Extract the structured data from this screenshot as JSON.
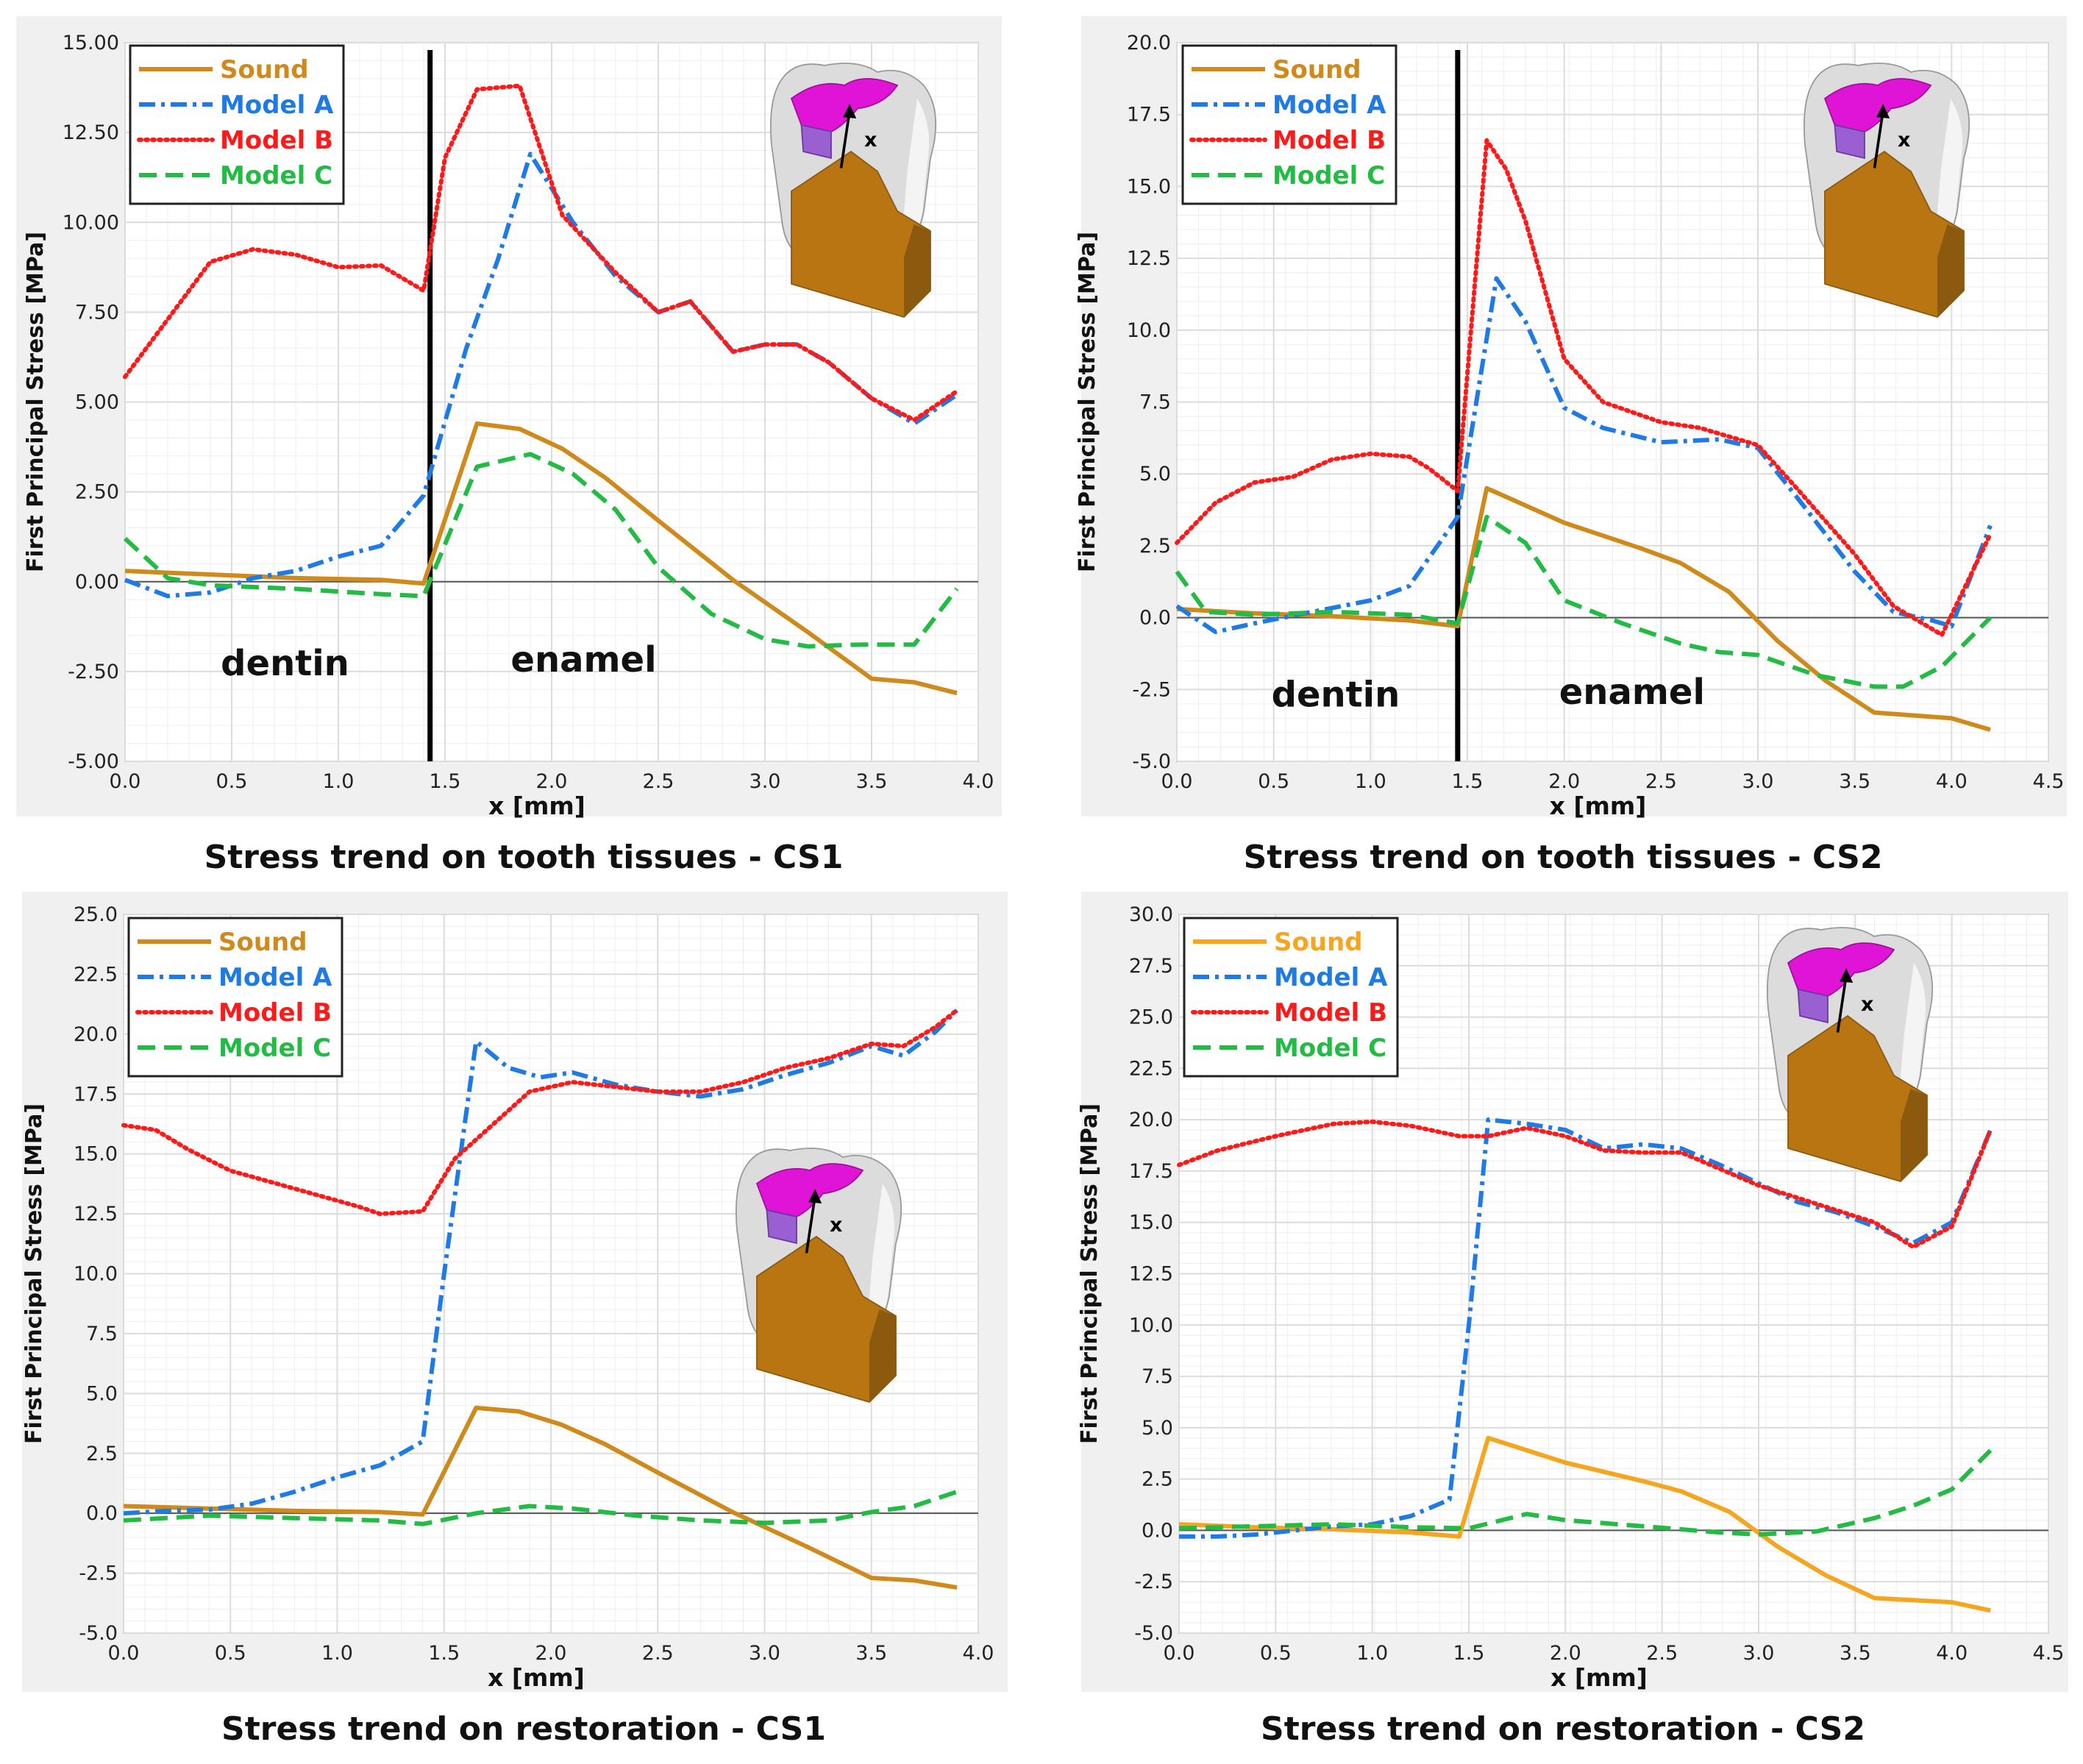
{
  "figure": {
    "captions": [
      "Stress trend on tooth tissues -  CS1",
      "Stress trend on tooth tissues -  CS2",
      "Stress trend on restoration -  CS1",
      "Stress trend on restoration -  CS2"
    ]
  },
  "colors": {
    "Sound": "#d08a1c",
    "Sound_alt": "#f5a51e",
    "Model A": "#1e7be6",
    "Model B": "#ff1a1a",
    "Model C": "#22bb44",
    "panel_bg": "#f0f0f0",
    "grid": "#dcdcdc"
  },
  "chart_data": [
    {
      "type": "line",
      "title": "Stress trend on tooth tissues -  CS1",
      "xlabel": "x [mm]",
      "ylabel": "First Principal Stress [MPa]",
      "xlim": [
        0.0,
        4.0
      ],
      "ylim": [
        -5.0,
        15.0
      ],
      "xticks": [
        0.0,
        0.5,
        1.0,
        1.5,
        2.0,
        2.5,
        3.0,
        3.5,
        4.0
      ],
      "xtick_labels": [
        "0.0",
        "0.5",
        "1.0",
        "1.5",
        "2.0",
        "2.5",
        "3.0",
        "3.5",
        "4.0"
      ],
      "yticks": [
        -5.0,
        -2.5,
        0.0,
        2.5,
        5.0,
        7.5,
        10.0,
        12.5,
        15.0
      ],
      "ytick_labels": [
        "-5.00",
        "-2.50",
        "0.00",
        "2.50",
        "5.00",
        "7.50",
        "10.00",
        "12.50",
        "15.00"
      ],
      "legend": [
        "Sound",
        "Model A",
        "Model B",
        "Model C"
      ],
      "legend_position": "top-left",
      "divider_x": 1.43,
      "region_labels": [
        {
          "text": "dentin",
          "x": 0.75,
          "y": -2.6
        },
        {
          "text": "enamel",
          "x": 2.15,
          "y": -2.5
        }
      ],
      "series": [
        {
          "name": "Sound",
          "x": [
            0.0,
            0.4,
            0.8,
            1.2,
            1.4,
            1.65,
            1.85,
            2.05,
            2.25,
            2.5,
            2.85,
            3.2,
            3.5,
            3.7,
            3.9
          ],
          "values": [
            0.3,
            0.2,
            0.1,
            0.05,
            -0.05,
            4.4,
            4.25,
            3.7,
            2.9,
            1.7,
            0.05,
            -1.4,
            -2.7,
            -2.8,
            -3.1
          ]
        },
        {
          "name": "Model A",
          "x": [
            0.0,
            0.2,
            0.4,
            0.6,
            0.8,
            1.0,
            1.2,
            1.4,
            1.6,
            1.75,
            1.9,
            2.1,
            2.3,
            2.5,
            2.65,
            2.85,
            3.0,
            3.15,
            3.3,
            3.5,
            3.7,
            3.9
          ],
          "values": [
            0.05,
            -0.4,
            -0.3,
            0.1,
            0.3,
            0.7,
            1.0,
            2.4,
            6.5,
            9.0,
            11.9,
            10.0,
            8.5,
            7.5,
            7.8,
            6.4,
            6.6,
            6.6,
            6.1,
            5.1,
            4.4,
            5.2
          ]
        },
        {
          "name": "Model B",
          "x": [
            0.0,
            0.2,
            0.4,
            0.6,
            0.8,
            1.0,
            1.2,
            1.4,
            1.5,
            1.65,
            1.85,
            2.05,
            2.3,
            2.5,
            2.65,
            2.85,
            3.0,
            3.15,
            3.3,
            3.5,
            3.7,
            3.9
          ],
          "values": [
            5.7,
            7.3,
            8.9,
            9.25,
            9.1,
            8.75,
            8.8,
            8.1,
            11.8,
            13.7,
            13.8,
            10.2,
            8.6,
            7.5,
            7.8,
            6.4,
            6.6,
            6.6,
            6.1,
            5.1,
            4.5,
            5.3
          ]
        },
        {
          "name": "Model C",
          "x": [
            0.0,
            0.2,
            0.4,
            0.8,
            1.2,
            1.4,
            1.65,
            1.9,
            2.1,
            2.3,
            2.5,
            2.75,
            3.0,
            3.2,
            3.45,
            3.7,
            3.9
          ],
          "values": [
            1.2,
            0.1,
            -0.1,
            -0.2,
            -0.35,
            -0.4,
            3.2,
            3.55,
            3.0,
            2.0,
            0.4,
            -0.9,
            -1.6,
            -1.8,
            -1.75,
            -1.75,
            -0.2
          ]
        }
      ]
    },
    {
      "type": "line",
      "title": "Stress trend on tooth tissues -  CS2",
      "xlabel": "x [mm]",
      "ylabel": "First Principal Stress [MPa]",
      "xlim": [
        0.0,
        4.5
      ],
      "ylim": [
        -5.0,
        20.0
      ],
      "xticks": [
        0.0,
        0.5,
        1.0,
        1.5,
        2.0,
        2.5,
        3.0,
        3.5,
        4.0,
        4.5
      ],
      "xtick_labels": [
        "0.0",
        "0.5",
        "1.0",
        "1.5",
        "2.0",
        "2.5",
        "3.0",
        "3.5",
        "4.0",
        "4.5"
      ],
      "yticks": [
        -5.0,
        -2.5,
        0.0,
        2.5,
        5.0,
        7.5,
        10.0,
        12.5,
        15.0,
        17.5,
        20.0
      ],
      "ytick_labels": [
        "-5.0",
        "-2.5",
        "0.0",
        "2.5",
        "5.0",
        "7.5",
        "10.0",
        "12.5",
        "15.0",
        "17.5",
        "20.0"
      ],
      "legend": [
        "Sound",
        "Model A",
        "Model B",
        "Model C"
      ],
      "legend_position": "top-left",
      "divider_x": 1.45,
      "region_labels": [
        {
          "text": "dentin",
          "x": 0.82,
          "y": -3.1
        },
        {
          "text": "enamel",
          "x": 2.35,
          "y": -3.0
        }
      ],
      "series": [
        {
          "name": "Sound",
          "x": [
            0.0,
            0.4,
            0.8,
            1.2,
            1.45,
            1.6,
            2.0,
            2.4,
            2.6,
            2.85,
            3.1,
            3.35,
            3.6,
            3.8,
            4.0,
            4.2
          ],
          "values": [
            0.3,
            0.15,
            0.05,
            -0.1,
            -0.3,
            4.5,
            3.3,
            2.4,
            1.9,
            0.9,
            -0.8,
            -2.2,
            -3.3,
            -3.4,
            -3.5,
            -3.9
          ]
        },
        {
          "name": "Model A",
          "x": [
            0.0,
            0.2,
            0.4,
            0.7,
            1.0,
            1.2,
            1.45,
            1.65,
            1.8,
            2.0,
            2.2,
            2.5,
            2.8,
            3.0,
            3.2,
            3.5,
            3.7,
            3.9,
            4.0,
            4.2
          ],
          "values": [
            0.4,
            -0.5,
            -0.2,
            0.2,
            0.6,
            1.1,
            3.5,
            11.8,
            10.3,
            7.3,
            6.6,
            6.1,
            6.2,
            5.9,
            4.2,
            1.6,
            0.2,
            -0.1,
            -0.3,
            3.2
          ]
        },
        {
          "name": "Model B",
          "x": [
            0.0,
            0.2,
            0.4,
            0.6,
            0.8,
            1.0,
            1.2,
            1.3,
            1.45,
            1.6,
            1.7,
            1.8,
            2.0,
            2.2,
            2.5,
            2.7,
            3.0,
            3.2,
            3.5,
            3.7,
            3.95,
            4.2
          ],
          "values": [
            2.6,
            4.0,
            4.7,
            4.9,
            5.5,
            5.7,
            5.6,
            5.2,
            4.4,
            16.6,
            15.6,
            13.8,
            9.0,
            7.5,
            6.8,
            6.6,
            6.0,
            4.5,
            2.2,
            0.4,
            -0.6,
            2.9
          ]
        },
        {
          "name": "Model C",
          "x": [
            0.0,
            0.15,
            0.4,
            0.8,
            1.2,
            1.45,
            1.6,
            1.8,
            2.0,
            2.3,
            2.6,
            2.8,
            3.0,
            3.3,
            3.6,
            3.75,
            3.95,
            4.2
          ],
          "values": [
            1.6,
            0.2,
            0.1,
            0.2,
            0.1,
            -0.2,
            3.5,
            2.6,
            0.6,
            -0.2,
            -0.9,
            -1.2,
            -1.3,
            -2.0,
            -2.4,
            -2.4,
            -1.7,
            0.0
          ]
        }
      ]
    },
    {
      "type": "line",
      "title": "Stress trend on restoration -  CS1",
      "xlabel": "x [mm]",
      "ylabel": "First Principal Stress [MPa]",
      "xlim": [
        0.0,
        4.0
      ],
      "ylim": [
        -5.0,
        25.0
      ],
      "xticks": [
        0.0,
        0.5,
        1.0,
        1.5,
        2.0,
        2.5,
        3.0,
        3.5,
        4.0
      ],
      "xtick_labels": [
        "0.0",
        "0.5",
        "1.0",
        "1.5",
        "2.0",
        "2.5",
        "3.0",
        "3.5",
        "4.0"
      ],
      "yticks": [
        -5.0,
        -2.5,
        0.0,
        2.5,
        5.0,
        7.5,
        10.0,
        12.5,
        15.0,
        17.5,
        20.0,
        22.5,
        25.0
      ],
      "ytick_labels": [
        "-5.0",
        "-2.5",
        "0.0",
        "2.5",
        "5.0",
        "7.5",
        "10.0",
        "12.5",
        "15.0",
        "17.5",
        "20.0",
        "22.5",
        "25.0"
      ],
      "legend": [
        "Sound",
        "Model A",
        "Model B",
        "Model C"
      ],
      "legend_position": "top-left",
      "series": [
        {
          "name": "Sound",
          "x": [
            0.0,
            0.4,
            0.8,
            1.2,
            1.4,
            1.65,
            1.85,
            2.05,
            2.25,
            2.5,
            2.85,
            3.2,
            3.5,
            3.7,
            3.9
          ],
          "values": [
            0.3,
            0.2,
            0.1,
            0.05,
            -0.05,
            4.4,
            4.25,
            3.7,
            2.9,
            1.7,
            0.05,
            -1.4,
            -2.7,
            -2.8,
            -3.1
          ]
        },
        {
          "name": "Model A",
          "x": [
            0.0,
            0.2,
            0.4,
            0.6,
            0.8,
            1.0,
            1.2,
            1.4,
            1.5,
            1.65,
            1.8,
            1.95,
            2.1,
            2.3,
            2.5,
            2.7,
            2.9,
            3.1,
            3.3,
            3.5,
            3.65,
            3.8,
            3.9
          ],
          "values": [
            0.0,
            0.1,
            0.15,
            0.4,
            0.9,
            1.5,
            2.0,
            3.0,
            10.0,
            19.7,
            18.6,
            18.2,
            18.4,
            17.9,
            17.6,
            17.4,
            17.7,
            18.3,
            18.8,
            19.5,
            19.1,
            20.1,
            21.0
          ]
        },
        {
          "name": "Model B",
          "x": [
            0.0,
            0.15,
            0.3,
            0.5,
            0.7,
            0.9,
            1.1,
            1.2,
            1.4,
            1.55,
            1.7,
            1.9,
            2.1,
            2.3,
            2.5,
            2.7,
            2.9,
            3.1,
            3.3,
            3.5,
            3.65,
            3.8,
            3.9
          ],
          "values": [
            16.2,
            16.0,
            15.2,
            14.3,
            13.8,
            13.3,
            12.8,
            12.5,
            12.6,
            14.8,
            16.0,
            17.6,
            18.0,
            17.8,
            17.6,
            17.6,
            18.0,
            18.6,
            19.0,
            19.6,
            19.5,
            20.3,
            21.0
          ]
        },
        {
          "name": "Model C",
          "x": [
            0.0,
            0.4,
            0.8,
            1.2,
            1.4,
            1.65,
            1.9,
            2.1,
            2.4,
            2.7,
            3.0,
            3.3,
            3.5,
            3.7,
            3.9
          ],
          "values": [
            -0.3,
            -0.1,
            -0.2,
            -0.3,
            -0.45,
            0.0,
            0.3,
            0.2,
            -0.1,
            -0.3,
            -0.4,
            -0.3,
            0.05,
            0.3,
            0.9
          ]
        }
      ]
    },
    {
      "type": "line",
      "title": "Stress trend on restoration -  CS2",
      "xlabel": "x [mm]",
      "ylabel": "First Principal Stress [MPa]",
      "xlim": [
        0.0,
        4.5
      ],
      "ylim": [
        -5.0,
        30.0
      ],
      "xticks": [
        0.0,
        0.5,
        1.0,
        1.5,
        2.0,
        2.5,
        3.0,
        3.5,
        4.0,
        4.5
      ],
      "xtick_labels": [
        "0.0",
        "0.5",
        "1.0",
        "1.5",
        "2.0",
        "2.5",
        "3.0",
        "3.5",
        "4.0",
        "4.5"
      ],
      "yticks": [
        -5.0,
        -2.5,
        0.0,
        2.5,
        5.0,
        7.5,
        10.0,
        12.5,
        15.0,
        17.5,
        20.0,
        22.5,
        25.0,
        27.5,
        30.0
      ],
      "ytick_labels": [
        "-5.0",
        "-2.5",
        "0.0",
        "2.5",
        "5.0",
        "7.5",
        "10.0",
        "12.5",
        "15.0",
        "17.5",
        "20.0",
        "22.5",
        "25.0",
        "27.5",
        "30.0"
      ],
      "legend": [
        "Sound",
        "Model A",
        "Model B",
        "Model C"
      ],
      "legend_position": "top-left",
      "series": [
        {
          "name": "Sound",
          "x": [
            0.0,
            0.4,
            0.8,
            1.2,
            1.45,
            1.6,
            2.0,
            2.4,
            2.6,
            2.85,
            3.1,
            3.35,
            3.6,
            3.8,
            4.0,
            4.2
          ],
          "values": [
            0.3,
            0.15,
            0.05,
            -0.1,
            -0.3,
            4.5,
            3.3,
            2.4,
            1.9,
            0.9,
            -0.8,
            -2.2,
            -3.3,
            -3.4,
            -3.5,
            -3.9
          ]
        },
        {
          "name": "Model A",
          "x": [
            0.0,
            0.2,
            0.4,
            0.6,
            0.8,
            1.0,
            1.2,
            1.4,
            1.5,
            1.6,
            1.8,
            2.0,
            2.2,
            2.4,
            2.6,
            2.8,
            3.0,
            3.2,
            3.4,
            3.6,
            3.8,
            4.0,
            4.2
          ],
          "values": [
            -0.3,
            -0.3,
            -0.2,
            0.0,
            0.2,
            0.3,
            0.7,
            1.5,
            10.0,
            20.0,
            19.8,
            19.5,
            18.6,
            18.8,
            18.6,
            17.8,
            16.9,
            16.0,
            15.5,
            14.8,
            14.0,
            15.0,
            19.5
          ]
        },
        {
          "name": "Model B",
          "x": [
            0.0,
            0.2,
            0.5,
            0.8,
            1.0,
            1.2,
            1.45,
            1.6,
            1.8,
            2.0,
            2.2,
            2.4,
            2.6,
            2.8,
            3.0,
            3.2,
            3.4,
            3.6,
            3.8,
            4.0,
            4.2
          ],
          "values": [
            17.8,
            18.5,
            19.2,
            19.8,
            19.9,
            19.7,
            19.2,
            19.2,
            19.6,
            19.2,
            18.5,
            18.4,
            18.4,
            17.6,
            16.8,
            16.2,
            15.6,
            15.0,
            13.8,
            14.8,
            19.5
          ]
        },
        {
          "name": "Model C",
          "x": [
            0.0,
            0.4,
            0.8,
            1.2,
            1.5,
            1.8,
            2.0,
            2.4,
            2.8,
            3.0,
            3.3,
            3.6,
            3.8,
            4.0,
            4.2
          ],
          "values": [
            0.1,
            0.2,
            0.3,
            0.15,
            0.1,
            0.8,
            0.5,
            0.2,
            -0.1,
            -0.2,
            -0.05,
            0.6,
            1.2,
            2.0,
            3.9
          ]
        }
      ]
    }
  ]
}
